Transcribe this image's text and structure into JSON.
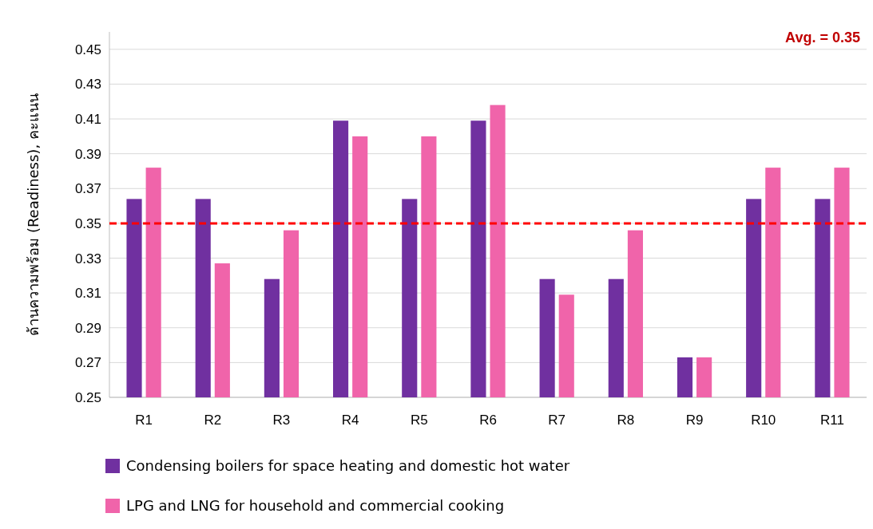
{
  "chart_data": {
    "type": "bar",
    "ylabel": "ด้านความพร้อม (Readiness), คะแนน",
    "categories": [
      "R1",
      "R2",
      "R3",
      "R4",
      "R5",
      "R6",
      "R7",
      "R8",
      "R9",
      "R10",
      "R11"
    ],
    "series": [
      {
        "name": "Condensing boilers for space heating and domestic hot water",
        "color": "#7030a0",
        "values": [
          0.364,
          0.364,
          0.318,
          0.409,
          0.364,
          0.409,
          0.318,
          0.318,
          0.273,
          0.364,
          0.364
        ]
      },
      {
        "name": "LPG and LNG for household and commercial cooking",
        "color": "#f064aa",
        "values": [
          0.382,
          0.327,
          0.346,
          0.4,
          0.4,
          0.418,
          0.309,
          0.346,
          0.273,
          0.382,
          0.382
        ]
      }
    ],
    "ylim": [
      0.25,
      0.46
    ],
    "yticks": [
      0.25,
      0.27,
      0.29,
      0.31,
      0.33,
      0.35,
      0.37,
      0.39,
      0.41,
      0.43,
      0.45
    ],
    "grid": "y",
    "legend": "bottom",
    "ref_lines": [
      {
        "axis": "y",
        "value": 0.35,
        "color": "#ff0000",
        "line_style": "dashed"
      }
    ],
    "annotations": [
      "Avg. = 0.35"
    ]
  }
}
